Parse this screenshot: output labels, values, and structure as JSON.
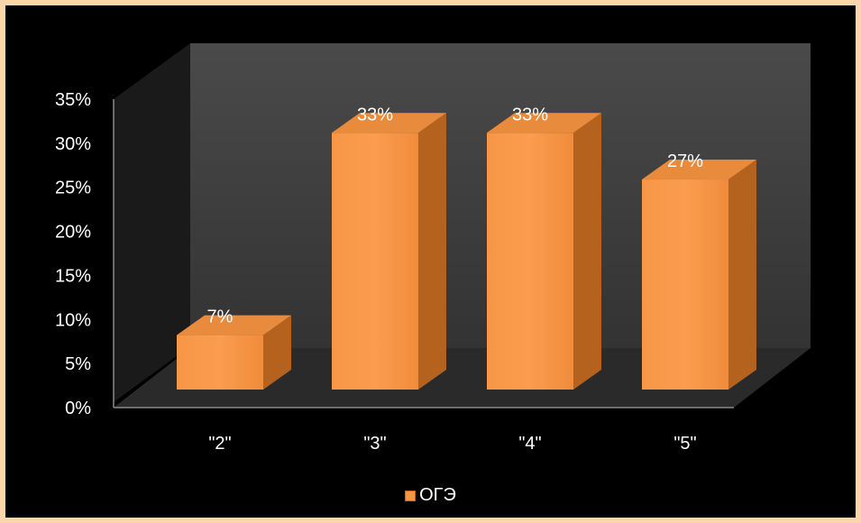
{
  "chart_data": {
    "type": "bar",
    "style": "3d-column",
    "categories": [
      "\"2\"",
      "\"3\"",
      "\"4\"",
      "\"5\""
    ],
    "series": [
      {
        "name": "ОГЭ",
        "values": [
          7,
          33,
          33,
          27
        ],
        "labels": [
          "7%",
          "33%",
          "33%",
          "27%"
        ]
      }
    ],
    "ylim": [
      0,
      35
    ],
    "yticks": [
      "0%",
      "5%",
      "10%",
      "15%",
      "20%",
      "25%",
      "30%",
      "35%"
    ],
    "grid": false,
    "legend": "bottom",
    "colors": {
      "bar": "#f79646",
      "background": "#000000",
      "frame": "#fbd6ad",
      "text": "#ffffff"
    }
  },
  "legend": {
    "label": "ОГЭ"
  }
}
